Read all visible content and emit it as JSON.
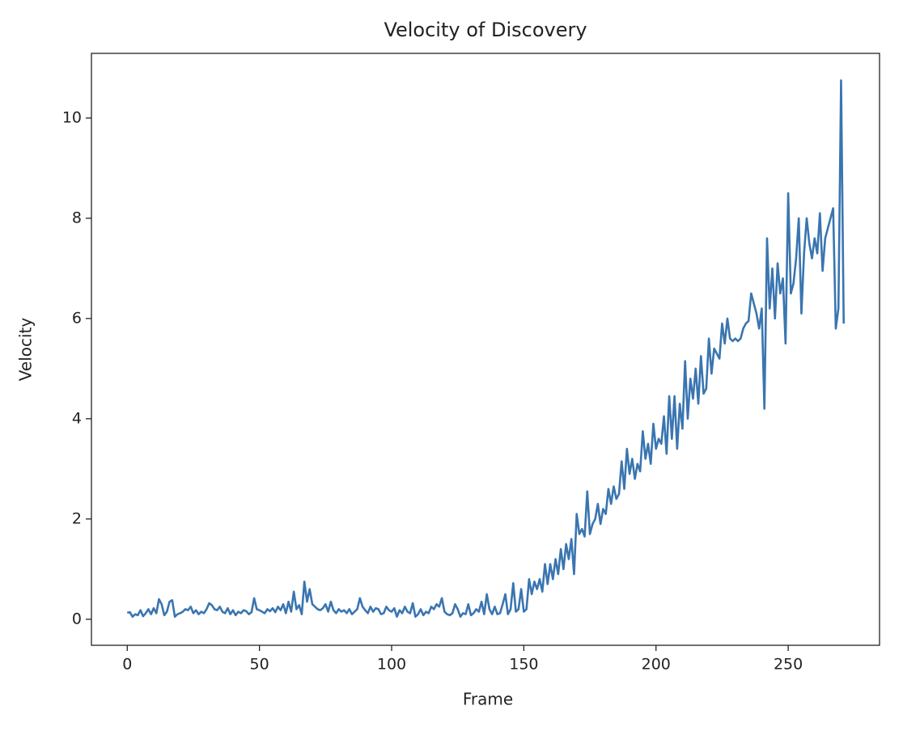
{
  "chart_data": {
    "type": "line",
    "title": "Velocity of Discovery",
    "x_label": "Frame",
    "y_label": "Velocity",
    "x": [
      0,
      1,
      2,
      3,
      4,
      5,
      6,
      7,
      8,
      9,
      10,
      11,
      12,
      13,
      14,
      15,
      16,
      17,
      18,
      19,
      20,
      21,
      22,
      23,
      24,
      25,
      26,
      27,
      28,
      29,
      30,
      31,
      32,
      33,
      34,
      35,
      36,
      37,
      38,
      39,
      40,
      41,
      42,
      43,
      44,
      45,
      46,
      47,
      48,
      49,
      50,
      51,
      52,
      53,
      54,
      55,
      56,
      57,
      58,
      59,
      60,
      61,
      62,
      63,
      64,
      65,
      66,
      67,
      68,
      69,
      70,
      71,
      72,
      73,
      74,
      75,
      76,
      77,
      78,
      79,
      80,
      81,
      82,
      83,
      84,
      85,
      86,
      87,
      88,
      89,
      90,
      91,
      92,
      93,
      94,
      95,
      96,
      97,
      98,
      99,
      100,
      101,
      102,
      103,
      104,
      105,
      106,
      107,
      108,
      109,
      110,
      111,
      112,
      113,
      114,
      115,
      116,
      117,
      118,
      119,
      120,
      121,
      122,
      123,
      124,
      125,
      126,
      127,
      128,
      129,
      130,
      131,
      132,
      133,
      134,
      135,
      136,
      137,
      138,
      139,
      140,
      141,
      142,
      143,
      144,
      145,
      146,
      147,
      148,
      149,
      150,
      151,
      152,
      153,
      154,
      155,
      156,
      157,
      158,
      159,
      160,
      161,
      162,
      163,
      164,
      165,
      166,
      167,
      168,
      169,
      170,
      171,
      172,
      173,
      174,
      175,
      176,
      177,
      178,
      179,
      180,
      181,
      182,
      183,
      184,
      185,
      186,
      187,
      188,
      189,
      190,
      191,
      192,
      193,
      194,
      195,
      196,
      197,
      198,
      199,
      200,
      201,
      202,
      203,
      204,
      205,
      206,
      207,
      208,
      209,
      210,
      211,
      212,
      213,
      214,
      215,
      216,
      217,
      218,
      219,
      220,
      221,
      222,
      223,
      224,
      225,
      226,
      227,
      228,
      229,
      230,
      231,
      232,
      233,
      234,
      235,
      236,
      237,
      238,
      239,
      240,
      241,
      242,
      243,
      244,
      245,
      246,
      247,
      248,
      249,
      250,
      251,
      252,
      253,
      254,
      255,
      256,
      257,
      258,
      259,
      260,
      261,
      262,
      263,
      264,
      265,
      266,
      267,
      268,
      269,
      270,
      271
    ],
    "series": [
      {
        "name": "Velocity",
        "color": "#3a75b0",
        "values": [
          0.13,
          0.14,
          0.05,
          0.1,
          0.08,
          0.18,
          0.06,
          0.12,
          0.2,
          0.1,
          0.22,
          0.12,
          0.4,
          0.3,
          0.08,
          0.15,
          0.35,
          0.38,
          0.05,
          0.1,
          0.12,
          0.15,
          0.2,
          0.18,
          0.25,
          0.12,
          0.18,
          0.1,
          0.15,
          0.12,
          0.2,
          0.32,
          0.28,
          0.2,
          0.18,
          0.25,
          0.15,
          0.12,
          0.22,
          0.1,
          0.18,
          0.08,
          0.15,
          0.12,
          0.18,
          0.16,
          0.1,
          0.14,
          0.42,
          0.2,
          0.18,
          0.15,
          0.12,
          0.2,
          0.16,
          0.22,
          0.14,
          0.25,
          0.18,
          0.3,
          0.12,
          0.35,
          0.15,
          0.55,
          0.2,
          0.28,
          0.1,
          0.75,
          0.35,
          0.6,
          0.3,
          0.25,
          0.2,
          0.18,
          0.22,
          0.3,
          0.15,
          0.35,
          0.18,
          0.12,
          0.2,
          0.15,
          0.18,
          0.12,
          0.2,
          0.1,
          0.15,
          0.2,
          0.42,
          0.25,
          0.18,
          0.12,
          0.25,
          0.15,
          0.22,
          0.2,
          0.1,
          0.12,
          0.25,
          0.18,
          0.15,
          0.22,
          0.05,
          0.18,
          0.12,
          0.25,
          0.15,
          0.12,
          0.32,
          0.05,
          0.1,
          0.2,
          0.08,
          0.15,
          0.12,
          0.25,
          0.2,
          0.3,
          0.25,
          0.42,
          0.15,
          0.1,
          0.08,
          0.12,
          0.3,
          0.2,
          0.05,
          0.12,
          0.1,
          0.3,
          0.08,
          0.12,
          0.2,
          0.15,
          0.35,
          0.1,
          0.5,
          0.2,
          0.1,
          0.25,
          0.1,
          0.12,
          0.3,
          0.5,
          0.1,
          0.2,
          0.72,
          0.15,
          0.2,
          0.6,
          0.15,
          0.2,
          0.8,
          0.5,
          0.75,
          0.6,
          0.8,
          0.55,
          1.1,
          0.7,
          1.1,
          0.8,
          1.2,
          0.9,
          1.4,
          1.0,
          1.5,
          1.2,
          1.6,
          0.9,
          2.1,
          1.7,
          1.8,
          1.65,
          2.55,
          1.7,
          1.9,
          2.0,
          2.3,
          1.9,
          2.2,
          2.1,
          2.6,
          2.3,
          2.65,
          2.4,
          2.5,
          3.15,
          2.6,
          3.4,
          2.9,
          3.2,
          2.8,
          3.1,
          2.95,
          3.75,
          3.2,
          3.5,
          3.1,
          3.9,
          3.4,
          3.6,
          3.5,
          4.05,
          3.3,
          4.45,
          3.6,
          4.45,
          3.4,
          4.3,
          3.8,
          5.15,
          4.0,
          4.8,
          4.4,
          5.0,
          4.3,
          5.25,
          4.5,
          4.6,
          5.6,
          4.9,
          5.4,
          5.3,
          5.2,
          5.9,
          5.5,
          6.0,
          5.6,
          5.55,
          5.6,
          5.55,
          5.6,
          5.8,
          5.9,
          5.95,
          6.5,
          6.3,
          6.1,
          5.8,
          6.2,
          4.2,
          7.6,
          6.2,
          7.0,
          6.0,
          7.1,
          6.5,
          6.8,
          5.5,
          8.5,
          6.5,
          6.7,
          7.2,
          8.0,
          6.1,
          7.3,
          8.0,
          7.5,
          7.2,
          7.6,
          7.3,
          8.1,
          6.95,
          7.6,
          7.8,
          8.0,
          8.2,
          5.8,
          6.2,
          10.75,
          5.9
        ]
      }
    ],
    "xlim": [
      -13.55,
      284.55
    ],
    "ylim": [
      -0.52,
      11.29
    ],
    "xticks": [
      0,
      50,
      100,
      150,
      200,
      250
    ],
    "yticks": [
      0,
      2,
      4,
      6,
      8,
      10
    ]
  }
}
